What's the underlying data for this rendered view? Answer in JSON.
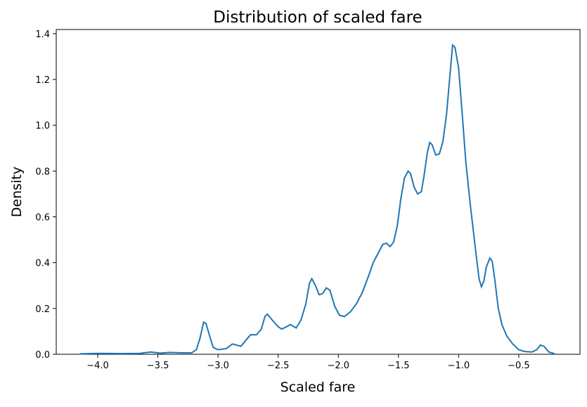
{
  "chart_data": {
    "type": "line",
    "title": "Distribution of scaled fare",
    "x_label": "Scaled fare",
    "y_label": "Density",
    "series": [
      {
        "name": "Density",
        "color": "#1f77b4",
        "x": [
          -4.15,
          -4.0,
          -3.8,
          -3.65,
          -3.56,
          -3.48,
          -3.4,
          -3.3,
          -3.22,
          -3.18,
          -3.15,
          -3.12,
          -3.1,
          -3.07,
          -3.04,
          -3.0,
          -2.93,
          -2.88,
          -2.81,
          -2.77,
          -2.73,
          -2.68,
          -2.64,
          -2.61,
          -2.59,
          -2.55,
          -2.5,
          -2.47,
          -2.43,
          -2.4,
          -2.35,
          -2.31,
          -2.27,
          -2.24,
          -2.22,
          -2.19,
          -2.16,
          -2.13,
          -2.1,
          -2.07,
          -2.03,
          -1.99,
          -1.95,
          -1.9,
          -1.85,
          -1.8,
          -1.75,
          -1.71,
          -1.67,
          -1.63,
          -1.6,
          -1.57,
          -1.54,
          -1.51,
          -1.48,
          -1.45,
          -1.42,
          -1.4,
          -1.37,
          -1.34,
          -1.31,
          -1.29,
          -1.26,
          -1.24,
          -1.22,
          -1.19,
          -1.16,
          -1.13,
          -1.1,
          -1.07,
          -1.05,
          -1.03,
          -1.0,
          -0.97,
          -0.94,
          -0.9,
          -0.86,
          -0.83,
          -0.81,
          -0.79,
          -0.77,
          -0.74,
          -0.72,
          -0.7,
          -0.67,
          -0.64,
          -0.6,
          -0.55,
          -0.5,
          -0.45,
          -0.39,
          -0.35,
          -0.32,
          -0.29,
          -0.25,
          -0.2
        ],
        "values": [
          0.002,
          0.004,
          0.003,
          0.004,
          0.01,
          0.005,
          0.008,
          0.006,
          0.006,
          0.02,
          0.07,
          0.14,
          0.135,
          0.08,
          0.03,
          0.02,
          0.025,
          0.045,
          0.035,
          0.06,
          0.085,
          0.085,
          0.11,
          0.165,
          0.175,
          0.15,
          0.12,
          0.11,
          0.12,
          0.13,
          0.115,
          0.15,
          0.22,
          0.31,
          0.33,
          0.3,
          0.26,
          0.265,
          0.29,
          0.28,
          0.21,
          0.17,
          0.165,
          0.185,
          0.22,
          0.27,
          0.34,
          0.4,
          0.44,
          0.48,
          0.485,
          0.47,
          0.49,
          0.56,
          0.68,
          0.77,
          0.8,
          0.79,
          0.73,
          0.7,
          0.71,
          0.77,
          0.88,
          0.925,
          0.915,
          0.87,
          0.875,
          0.93,
          1.05,
          1.23,
          1.35,
          1.34,
          1.25,
          1.05,
          0.84,
          0.64,
          0.46,
          0.33,
          0.295,
          0.32,
          0.38,
          0.42,
          0.405,
          0.33,
          0.2,
          0.13,
          0.08,
          0.045,
          0.02,
          0.012,
          0.01,
          0.02,
          0.04,
          0.035,
          0.01,
          0.002
        ]
      }
    ],
    "xlim": [
      -4.345,
      0.009
    ],
    "ylim": [
      0,
      1.418
    ],
    "xticks": [
      {
        "value": -4.0,
        "label": "−4.0"
      },
      {
        "value": -3.5,
        "label": "−3.5"
      },
      {
        "value": -3.0,
        "label": "−3.0"
      },
      {
        "value": -2.5,
        "label": "−2.5"
      },
      {
        "value": -2.0,
        "label": "−2.0"
      },
      {
        "value": -1.5,
        "label": "−1.5"
      },
      {
        "value": -1.0,
        "label": "−1.0"
      },
      {
        "value": -0.5,
        "label": "−0.5"
      }
    ],
    "yticks": [
      {
        "value": 0,
        "label": "0.0"
      },
      0.2,
      0.4,
      0.6,
      0.8,
      {
        "value": 1,
        "label": "1.0"
      },
      1.2,
      1.4
    ]
  }
}
